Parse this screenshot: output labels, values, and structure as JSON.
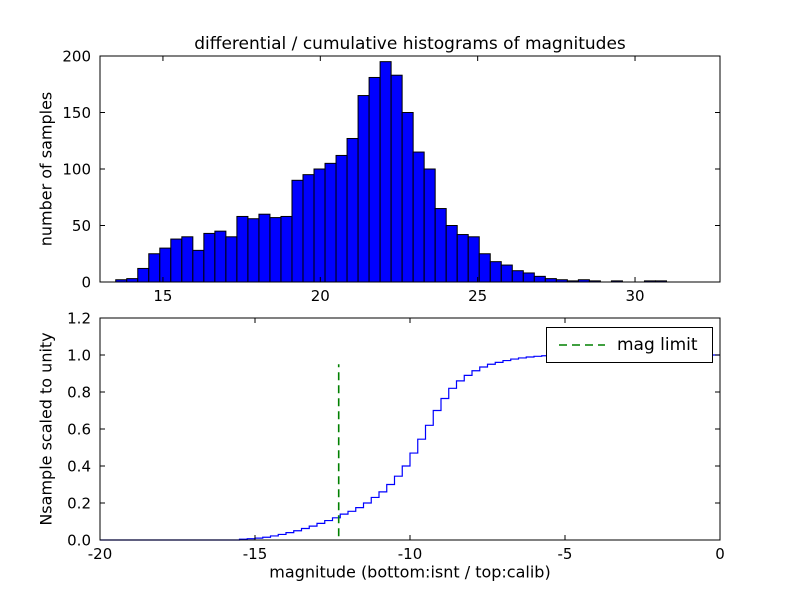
{
  "figure": {
    "background": "#ffffff",
    "frame_color": "#000000"
  },
  "chart_data": [
    {
      "type": "bar",
      "title": "differential / cumulative histograms of magnitudes",
      "ylabel": "number of samples",
      "xlim": [
        13,
        32.7
      ],
      "ylim": [
        0,
        200
      ],
      "xticks": [
        15,
        20,
        25,
        30
      ],
      "xtick_labels": [
        "15",
        "20",
        "25",
        "30"
      ],
      "yticks": [
        0,
        50,
        100,
        150,
        200
      ],
      "ytick_labels": [
        "0",
        "50",
        "100",
        "150",
        "200"
      ],
      "bar_color": "#0000ff",
      "bar_edge_color": "#000000",
      "bin_start": 13.5,
      "bin_width": 0.35,
      "values": [
        2,
        3,
        12,
        25,
        30,
        38,
        40,
        28,
        43,
        45,
        40,
        58,
        56,
        60,
        57,
        58,
        90,
        95,
        100,
        105,
        112,
        127,
        165,
        181,
        195,
        183,
        150,
        115,
        100,
        65,
        50,
        42,
        40,
        25,
        18,
        15,
        10,
        8,
        5,
        3,
        2,
        1,
        2,
        1,
        0,
        1,
        0,
        0,
        1,
        1
      ]
    },
    {
      "type": "line",
      "style": "step",
      "ylabel": "Nsample scaled to unity",
      "xlabel": "magnitude (bottom:isnt / top:calib)",
      "xlim": [
        -20,
        0
      ],
      "ylim": [
        0,
        1.2
      ],
      "xticks": [
        -20,
        -15,
        -10,
        -5,
        0
      ],
      "xtick_labels": [
        "-20",
        "-15",
        "-10",
        "-5",
        "0"
      ],
      "yticks": [
        0,
        0.2,
        0.4,
        0.6,
        0.8,
        1.0,
        1.2
      ],
      "ytick_labels": [
        "0.0",
        "0.2",
        "0.4",
        "0.6",
        "0.8",
        "1.0",
        "1.2"
      ],
      "line_color": "#0000ff",
      "points": [
        [
          -20,
          0
        ],
        [
          -15.5,
          0.004
        ],
        [
          -15.25,
          0.007
        ],
        [
          -15,
          0.01
        ],
        [
          -14.75,
          0.015
        ],
        [
          -14.5,
          0.022
        ],
        [
          -14.25,
          0.03
        ],
        [
          -14,
          0.04
        ],
        [
          -13.75,
          0.05
        ],
        [
          -13.5,
          0.062
        ],
        [
          -13.25,
          0.075
        ],
        [
          -13,
          0.09
        ],
        [
          -12.75,
          0.105
        ],
        [
          -12.5,
          0.12
        ],
        [
          -12.25,
          0.14
        ],
        [
          -12,
          0.155
        ],
        [
          -11.75,
          0.175
        ],
        [
          -11.5,
          0.2
        ],
        [
          -11.25,
          0.23
        ],
        [
          -11,
          0.26
        ],
        [
          -10.75,
          0.3
        ],
        [
          -10.5,
          0.345
        ],
        [
          -10.25,
          0.4
        ],
        [
          -10,
          0.47
        ],
        [
          -9.75,
          0.545
        ],
        [
          -9.5,
          0.62
        ],
        [
          -9.25,
          0.7
        ],
        [
          -9,
          0.765
        ],
        [
          -8.75,
          0.82
        ],
        [
          -8.5,
          0.86
        ],
        [
          -8.25,
          0.89
        ],
        [
          -8,
          0.915
        ],
        [
          -7.75,
          0.935
        ],
        [
          -7.5,
          0.95
        ],
        [
          -7.25,
          0.96
        ],
        [
          -7,
          0.97
        ],
        [
          -6.75,
          0.978
        ],
        [
          -6.5,
          0.984
        ],
        [
          -6.25,
          0.989
        ],
        [
          -6,
          0.993
        ],
        [
          -5.75,
          0.996
        ],
        [
          -5.5,
          0.998
        ],
        [
          -5.25,
          0.999
        ],
        [
          -5,
          1.0
        ],
        [
          0,
          1.0
        ]
      ],
      "vline": {
        "x": -12.3,
        "y0": 0.02,
        "y1": 0.95,
        "color": "#008000",
        "dash": "dashed"
      },
      "legend_label": "mag limit",
      "legend_line_color": "#008000"
    }
  ]
}
